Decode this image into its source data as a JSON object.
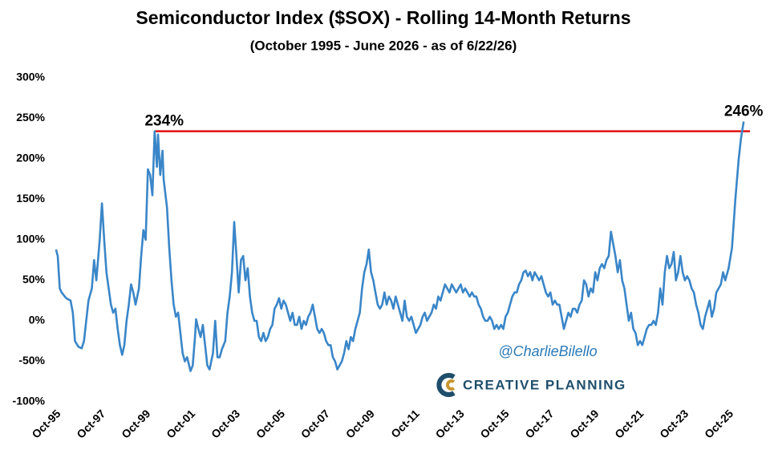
{
  "chart_data": {
    "type": "line",
    "title": "Semiconductor Index ($SOX) - Rolling 14-Month Returns",
    "subtitle": "(October 1995 - June 2026 - as of 6/22/26)",
    "xlim": [
      1995.4,
      2026.7
    ],
    "xticks": [
      {
        "value": 1995.75,
        "label": "Oct-95"
      },
      {
        "value": 1997.75,
        "label": "Oct-97"
      },
      {
        "value": 1999.75,
        "label": "Oct-99"
      },
      {
        "value": 2001.75,
        "label": "Oct-01"
      },
      {
        "value": 2003.75,
        "label": "Oct-03"
      },
      {
        "value": 2005.75,
        "label": "Oct-05"
      },
      {
        "value": 2007.75,
        "label": "Oct-07"
      },
      {
        "value": 2009.75,
        "label": "Oct-09"
      },
      {
        "value": 2011.75,
        "label": "Oct-11"
      },
      {
        "value": 2013.75,
        "label": "Oct-13"
      },
      {
        "value": 2015.75,
        "label": "Oct-15"
      },
      {
        "value": 2017.75,
        "label": "Oct-17"
      },
      {
        "value": 2019.75,
        "label": "Oct-19"
      },
      {
        "value": 2021.75,
        "label": "Oct-21"
      },
      {
        "value": 2023.75,
        "label": "Oct-23"
      },
      {
        "value": 2025.75,
        "label": "Oct-25"
      }
    ],
    "ylim": [
      -100,
      300
    ],
    "yticks": [
      {
        "value": 300,
        "label": "300%"
      },
      {
        "value": 250,
        "label": "250%"
      },
      {
        "value": 200,
        "label": "200%"
      },
      {
        "value": 150,
        "label": "150%"
      },
      {
        "value": 100,
        "label": "100%"
      },
      {
        "value": 50,
        "label": "50%"
      },
      {
        "value": 0,
        "label": "0%"
      },
      {
        "value": -50,
        "label": "-50%"
      },
      {
        "value": -100,
        "label": "-100%"
      }
    ],
    "grid": false,
    "series": [
      {
        "color": "#3a86c8",
        "x": [
          1995.75,
          1995.83,
          1995.92,
          1996.0,
          1996.2,
          1996.4,
          1996.5,
          1996.6,
          1996.75,
          1996.9,
          1997.0,
          1997.1,
          1997.2,
          1997.35,
          1997.45,
          1997.55,
          1997.7,
          1997.8,
          1997.9,
          1998.0,
          1998.1,
          1998.2,
          1998.3,
          1998.4,
          1998.5,
          1998.6,
          1998.7,
          1998.8,
          1998.9,
          1999.0,
          1999.1,
          1999.2,
          1999.3,
          1999.45,
          1999.55,
          1999.65,
          1999.75,
          1999.85,
          1999.95,
          2000.05,
          2000.15,
          2000.25,
          2000.3,
          2000.4,
          2000.5,
          2000.55,
          2000.7,
          2000.8,
          2000.9,
          2001.0,
          2001.1,
          2001.2,
          2001.3,
          2001.4,
          2001.5,
          2001.6,
          2001.75,
          2001.85,
          2001.95,
          2002.0,
          2002.1,
          2002.2,
          2002.3,
          2002.4,
          2002.5,
          2002.6,
          2002.75,
          2002.85,
          2002.95,
          2003.05,
          2003.15,
          2003.3,
          2003.4,
          2003.5,
          2003.6,
          2003.7,
          2003.8,
          2003.9,
          2004.0,
          2004.1,
          2004.2,
          2004.3,
          2004.4,
          2004.5,
          2004.6,
          2004.7,
          2004.8,
          2004.9,
          2005.0,
          2005.1,
          2005.2,
          2005.3,
          2005.4,
          2005.5,
          2005.6,
          2005.7,
          2005.8,
          2005.9,
          2006.0,
          2006.1,
          2006.2,
          2006.3,
          2006.4,
          2006.5,
          2006.6,
          2006.7,
          2006.8,
          2006.9,
          2007.0,
          2007.1,
          2007.2,
          2007.3,
          2007.4,
          2007.5,
          2007.6,
          2007.7,
          2007.8,
          2007.9,
          2008.0,
          2008.1,
          2008.2,
          2008.3,
          2008.4,
          2008.5,
          2008.6,
          2008.7,
          2008.8,
          2008.9,
          2009.0,
          2009.1,
          2009.2,
          2009.3,
          2009.4,
          2009.5,
          2009.6,
          2009.7,
          2009.8,
          2009.9,
          2010.0,
          2010.1,
          2010.2,
          2010.3,
          2010.4,
          2010.5,
          2010.6,
          2010.7,
          2010.8,
          2010.9,
          2011.0,
          2011.1,
          2011.2,
          2011.3,
          2011.4,
          2011.5,
          2011.6,
          2011.7,
          2011.8,
          2011.9,
          2012.0,
          2012.1,
          2012.2,
          2012.3,
          2012.4,
          2012.5,
          2012.6,
          2012.7,
          2012.8,
          2012.9,
          2013.0,
          2013.1,
          2013.2,
          2013.3,
          2013.4,
          2013.5,
          2013.6,
          2013.7,
          2013.8,
          2013.9,
          2014.0,
          2014.1,
          2014.2,
          2014.3,
          2014.4,
          2014.5,
          2014.6,
          2014.7,
          2014.8,
          2014.9,
          2015.0,
          2015.1,
          2015.2,
          2015.3,
          2015.4,
          2015.5,
          2015.6,
          2015.7,
          2015.8,
          2015.9,
          2016.0,
          2016.1,
          2016.2,
          2016.3,
          2016.4,
          2016.5,
          2016.6,
          2016.7,
          2016.8,
          2016.9,
          2017.0,
          2017.1,
          2017.2,
          2017.3,
          2017.4,
          2017.5,
          2017.6,
          2017.7,
          2017.8,
          2017.9,
          2018.0,
          2018.1,
          2018.2,
          2018.3,
          2018.4,
          2018.5,
          2018.6,
          2018.7,
          2018.8,
          2018.9,
          2019.0,
          2019.1,
          2019.2,
          2019.3,
          2019.4,
          2019.5,
          2019.6,
          2019.7,
          2019.8,
          2019.9,
          2020.0,
          2020.1,
          2020.2,
          2020.3,
          2020.4,
          2020.5,
          2020.6,
          2020.7,
          2020.8,
          2020.9,
          2021.0,
          2021.1,
          2021.2,
          2021.3,
          2021.4,
          2021.5,
          2021.6,
          2021.7,
          2021.8,
          2021.9,
          2022.0,
          2022.1,
          2022.2,
          2022.3,
          2022.4,
          2022.5,
          2022.6,
          2022.7,
          2022.8,
          2022.9,
          2023.0,
          2023.1,
          2023.2,
          2023.3,
          2023.4,
          2023.5,
          2023.6,
          2023.7,
          2023.8,
          2023.9,
          2024.0,
          2024.1,
          2024.2,
          2024.3,
          2024.4,
          2024.5,
          2024.6,
          2024.7,
          2024.8,
          2024.9,
          2025.0,
          2025.1,
          2025.2,
          2025.3,
          2025.4,
          2025.5,
          2025.6,
          2025.75,
          2025.9,
          2026.05,
          2026.2,
          2026.3,
          2026.42
        ],
        "values": [
          88,
          80,
          40,
          35,
          28,
          25,
          10,
          -25,
          -32,
          -34,
          -25,
          0,
          25,
          40,
          75,
          50,
          100,
          145,
          100,
          60,
          40,
          20,
          10,
          15,
          -10,
          -30,
          -42,
          -30,
          0,
          20,
          45,
          35,
          20,
          40,
          80,
          112,
          100,
          187,
          180,
          155,
          234,
          190,
          230,
          180,
          210,
          175,
          140,
          90,
          50,
          20,
          5,
          10,
          -15,
          -40,
          -50,
          -45,
          -62,
          -55,
          -20,
          2,
          -10,
          -20,
          -5,
          -30,
          -55,
          -60,
          -40,
          0,
          -45,
          -45,
          -35,
          -25,
          10,
          30,
          60,
          122,
          80,
          35,
          75,
          80,
          50,
          65,
          30,
          10,
          0,
          0,
          -20,
          -25,
          -15,
          -25,
          -20,
          -10,
          -5,
          15,
          20,
          28,
          15,
          25,
          20,
          10,
          0,
          10,
          -5,
          -5,
          5,
          -10,
          0,
          -5,
          5,
          10,
          20,
          5,
          -10,
          -15,
          -10,
          -15,
          -25,
          -30,
          -30,
          -45,
          -50,
          -60,
          -55,
          -50,
          -40,
          -25,
          -35,
          -20,
          -25,
          -10,
          0,
          10,
          40,
          60,
          70,
          88,
          60,
          50,
          35,
          20,
          15,
          20,
          35,
          20,
          30,
          25,
          15,
          30,
          20,
          10,
          0,
          25,
          5,
          0,
          5,
          -5,
          -15,
          -10,
          -5,
          5,
          10,
          0,
          5,
          10,
          20,
          15,
          30,
          25,
          35,
          45,
          40,
          35,
          45,
          40,
          35,
          40,
          45,
          35,
          40,
          35,
          30,
          35,
          30,
          30,
          20,
          15,
          5,
          0,
          0,
          5,
          0,
          -10,
          -5,
          -10,
          -5,
          -10,
          5,
          10,
          20,
          30,
          35,
          35,
          45,
          50,
          60,
          62,
          55,
          60,
          50,
          60,
          55,
          50,
          55,
          45,
          35,
          30,
          35,
          20,
          25,
          20,
          20,
          5,
          -10,
          0,
          10,
          5,
          15,
          15,
          10,
          20,
          25,
          50,
          45,
          30,
          40,
          35,
          60,
          50,
          65,
          70,
          65,
          75,
          80,
          110,
          95,
          80,
          60,
          75,
          50,
          40,
          20,
          0,
          10,
          -10,
          -15,
          -30,
          -25,
          -30,
          -20,
          -10,
          -5,
          -5,
          0,
          -5,
          10,
          40,
          20,
          60,
          80,
          65,
          70,
          85,
          50,
          60,
          80,
          60,
          50,
          55,
          50,
          40,
          35,
          20,
          10,
          -5,
          -10,
          5,
          15,
          25,
          5,
          15,
          35,
          40,
          45,
          60,
          50,
          65,
          90,
          150,
          200,
          225,
          246
        ]
      }
    ],
    "reference_line": {
      "value": 234,
      "x": 2000.15,
      "color": "#e01010"
    },
    "annotations": [
      {
        "label": "234%",
        "value": 234,
        "x": 2000.15
      },
      {
        "label": "246%",
        "value": 246,
        "x": 2026.42
      }
    ],
    "watermark": [
      "@CharlieBilello",
      "CREATIVE PLANNING"
    ]
  }
}
